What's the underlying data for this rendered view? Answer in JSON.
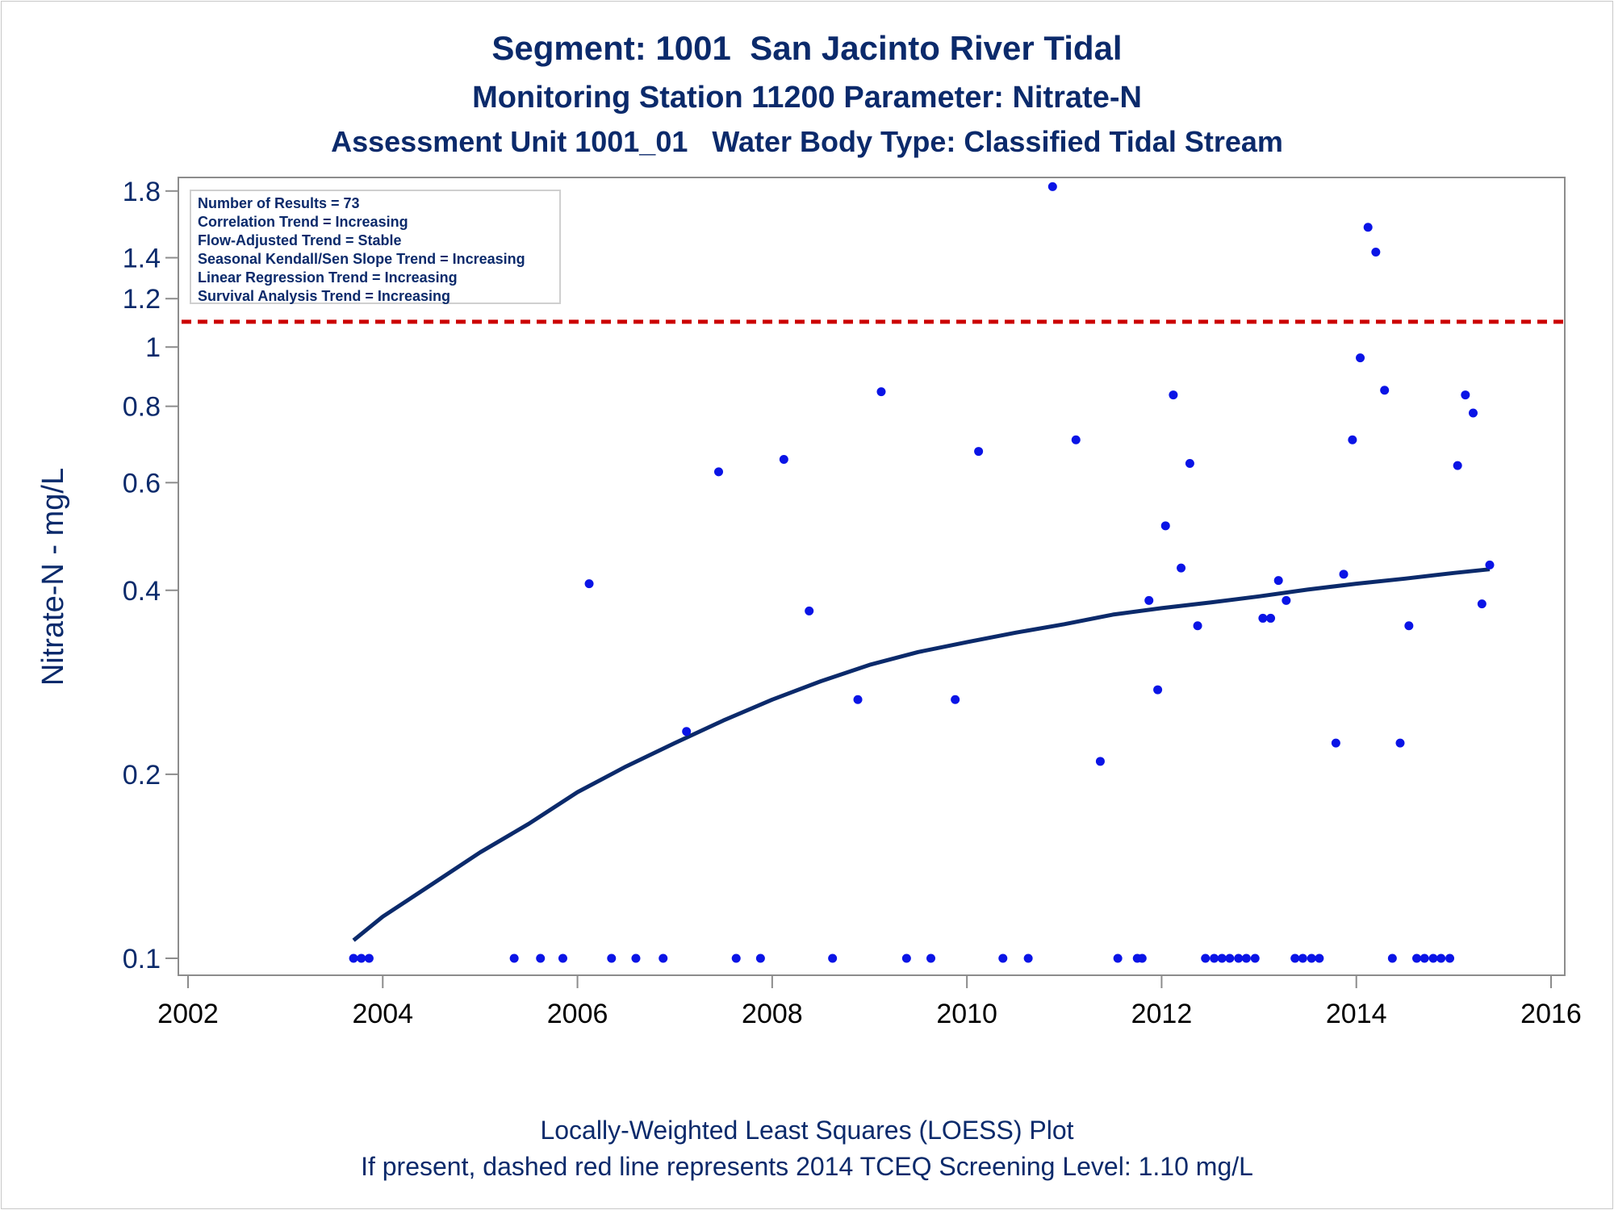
{
  "titles": {
    "line1": "Segment: 1001  San Jacinto River Tidal",
    "line2": "Monitoring Station 11200 Parameter: Nitrate-N",
    "line3": "Assessment Unit 1001_01   Water Body Type: Classified Tidal Stream"
  },
  "footer": {
    "line1": "Locally-Weighted Least Squares (LOESS) Plot",
    "line2": "If present, dashed red line represents 2014 TCEQ Screening Level: 1.10 mg/L"
  },
  "stats_box": [
    "Number of Results = 73",
    "Correlation Trend = Increasing",
    "Flow-Adjusted Trend = Stable",
    "Seasonal Kendall/Sen Slope Trend = Increasing",
    "Linear Regression Trend = Increasing",
    "Survival Analysis Trend = Increasing"
  ],
  "colors": {
    "text": "#0b2a6b",
    "points": "#0a14e6",
    "loess": "#0b2a6b",
    "screening_line": "#cc0000",
    "axis": "#8c8c8c"
  },
  "chart_data": {
    "type": "scatter",
    "ylabel": "Nitrate-N - mg/L",
    "xlabel": "",
    "yscale": "log",
    "xlim": [
      2002,
      2016
    ],
    "ylim": [
      0.097,
      1.86
    ],
    "xticks": [
      2002,
      2004,
      2006,
      2008,
      2010,
      2012,
      2014,
      2016
    ],
    "yticks": [
      0.1,
      0.2,
      0.4,
      0.6,
      0.8,
      1,
      1.2,
      1.4,
      1.8
    ],
    "ytick_labels": [
      "0.1",
      "0.2",
      "0.4",
      "0.6",
      "0.8",
      "1",
      "1.2",
      "1.4",
      "1.8"
    ],
    "screening_level": 1.1,
    "grid": false,
    "legend_position": "top-left",
    "points": [
      {
        "x": 2003.7,
        "y": 0.1
      },
      {
        "x": 2003.78,
        "y": 0.1
      },
      {
        "x": 2003.86,
        "y": 0.1
      },
      {
        "x": 2005.35,
        "y": 0.1
      },
      {
        "x": 2005.62,
        "y": 0.1
      },
      {
        "x": 2005.85,
        "y": 0.1
      },
      {
        "x": 2006.12,
        "y": 0.41
      },
      {
        "x": 2006.35,
        "y": 0.1
      },
      {
        "x": 2006.6,
        "y": 0.1
      },
      {
        "x": 2006.88,
        "y": 0.1
      },
      {
        "x": 2007.12,
        "y": 0.235
      },
      {
        "x": 2007.45,
        "y": 0.625
      },
      {
        "x": 2007.63,
        "y": 0.1
      },
      {
        "x": 2007.88,
        "y": 0.1
      },
      {
        "x": 2008.12,
        "y": 0.655
      },
      {
        "x": 2008.38,
        "y": 0.37
      },
      {
        "x": 2008.62,
        "y": 0.1
      },
      {
        "x": 2008.88,
        "y": 0.265
      },
      {
        "x": 2009.12,
        "y": 0.845
      },
      {
        "x": 2009.38,
        "y": 0.1
      },
      {
        "x": 2009.63,
        "y": 0.1
      },
      {
        "x": 2009.88,
        "y": 0.265
      },
      {
        "x": 2010.12,
        "y": 0.675
      },
      {
        "x": 2010.37,
        "y": 0.1
      },
      {
        "x": 2010.63,
        "y": 0.1
      },
      {
        "x": 2010.88,
        "y": 1.83
      },
      {
        "x": 2011.12,
        "y": 0.705
      },
      {
        "x": 2011.37,
        "y": 0.21
      },
      {
        "x": 2011.55,
        "y": 0.1
      },
      {
        "x": 2011.75,
        "y": 0.1
      },
      {
        "x": 2011.8,
        "y": 0.1
      },
      {
        "x": 2011.87,
        "y": 0.385
      },
      {
        "x": 2011.96,
        "y": 0.275
      },
      {
        "x": 2012.04,
        "y": 0.51
      },
      {
        "x": 2012.12,
        "y": 0.835
      },
      {
        "x": 2012.2,
        "y": 0.435
      },
      {
        "x": 2012.29,
        "y": 0.645
      },
      {
        "x": 2012.37,
        "y": 0.35
      },
      {
        "x": 2012.45,
        "y": 0.1
      },
      {
        "x": 2012.54,
        "y": 0.1
      },
      {
        "x": 2012.62,
        "y": 0.1
      },
      {
        "x": 2012.7,
        "y": 0.1
      },
      {
        "x": 2012.79,
        "y": 0.1
      },
      {
        "x": 2012.87,
        "y": 0.1
      },
      {
        "x": 2012.96,
        "y": 0.1
      },
      {
        "x": 2013.04,
        "y": 0.36
      },
      {
        "x": 2013.12,
        "y": 0.36
      },
      {
        "x": 2013.2,
        "y": 0.415
      },
      {
        "x": 2013.28,
        "y": 0.385
      },
      {
        "x": 2013.37,
        "y": 0.1
      },
      {
        "x": 2013.45,
        "y": 0.1
      },
      {
        "x": 2013.54,
        "y": 0.1
      },
      {
        "x": 2013.62,
        "y": 0.1
      },
      {
        "x": 2013.79,
        "y": 0.225
      },
      {
        "x": 2013.87,
        "y": 0.425
      },
      {
        "x": 2013.96,
        "y": 0.705
      },
      {
        "x": 2014.04,
        "y": 0.96
      },
      {
        "x": 2014.12,
        "y": 1.57
      },
      {
        "x": 2014.2,
        "y": 1.43
      },
      {
        "x": 2014.29,
        "y": 0.85
      },
      {
        "x": 2014.37,
        "y": 0.1
      },
      {
        "x": 2014.45,
        "y": 0.225
      },
      {
        "x": 2014.54,
        "y": 0.35
      },
      {
        "x": 2014.62,
        "y": 0.1
      },
      {
        "x": 2014.7,
        "y": 0.1
      },
      {
        "x": 2014.79,
        "y": 0.1
      },
      {
        "x": 2014.87,
        "y": 0.1
      },
      {
        "x": 2014.96,
        "y": 0.1
      },
      {
        "x": 2015.04,
        "y": 0.64
      },
      {
        "x": 2015.12,
        "y": 0.835
      },
      {
        "x": 2015.2,
        "y": 0.78
      },
      {
        "x": 2015.29,
        "y": 0.38
      },
      {
        "x": 2015.37,
        "y": 0.44
      }
    ],
    "loess_curve": [
      {
        "x": 2003.7,
        "y": 0.107
      },
      {
        "x": 2004.0,
        "y": 0.117
      },
      {
        "x": 2004.5,
        "y": 0.132
      },
      {
        "x": 2005.0,
        "y": 0.149
      },
      {
        "x": 2005.5,
        "y": 0.166
      },
      {
        "x": 2006.0,
        "y": 0.187
      },
      {
        "x": 2006.5,
        "y": 0.206
      },
      {
        "x": 2007.0,
        "y": 0.225
      },
      {
        "x": 2007.5,
        "y": 0.245
      },
      {
        "x": 2008.0,
        "y": 0.265
      },
      {
        "x": 2008.5,
        "y": 0.284
      },
      {
        "x": 2009.0,
        "y": 0.302
      },
      {
        "x": 2009.5,
        "y": 0.317
      },
      {
        "x": 2010.0,
        "y": 0.329
      },
      {
        "x": 2010.5,
        "y": 0.341
      },
      {
        "x": 2011.0,
        "y": 0.352
      },
      {
        "x": 2011.5,
        "y": 0.365
      },
      {
        "x": 2012.0,
        "y": 0.374
      },
      {
        "x": 2012.5,
        "y": 0.382
      },
      {
        "x": 2013.0,
        "y": 0.391
      },
      {
        "x": 2013.5,
        "y": 0.401
      },
      {
        "x": 2014.0,
        "y": 0.41
      },
      {
        "x": 2014.5,
        "y": 0.418
      },
      {
        "x": 2015.0,
        "y": 0.427
      },
      {
        "x": 2015.37,
        "y": 0.433
      }
    ]
  }
}
